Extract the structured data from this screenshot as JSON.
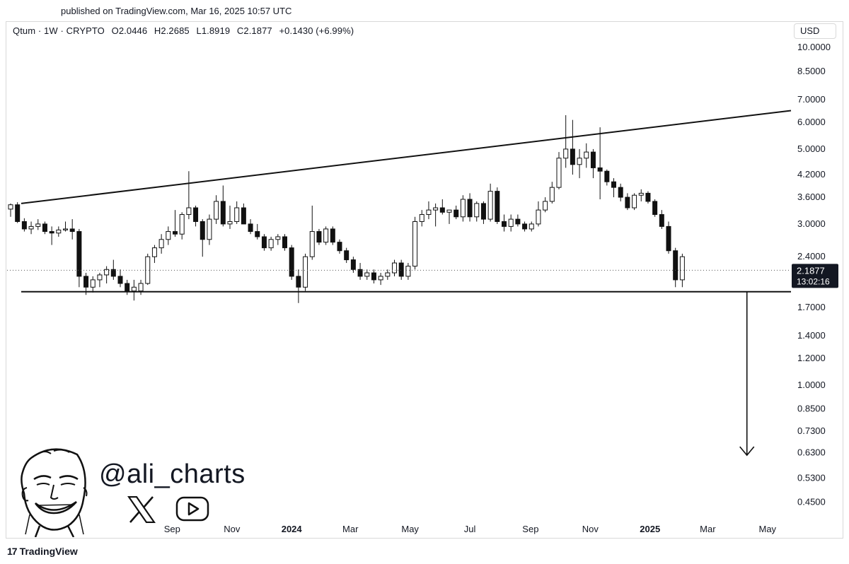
{
  "header": {
    "published": "published on TradingView.com, Mar 16, 2025 10:57 UTC"
  },
  "legend": {
    "symbol": "Qtum · 1W · CRYPTO",
    "open": "O2.0446",
    "high": "H2.2685",
    "low": "L1.8919",
    "close": "C2.1877",
    "change": "+0.1430 (+6.99%)"
  },
  "price_scale": {
    "currency": "USD",
    "last_price": "2.1877",
    "countdown": "13:02:16"
  },
  "watermark": {
    "handle": "@ali_charts",
    "icons": [
      "cartoon-face-icon",
      "x-logo-icon",
      "youtube-play-icon"
    ]
  },
  "footer": {
    "brand": "TradingView"
  },
  "chart_data": {
    "type": "candlestick",
    "y_scale": "log",
    "ylim": [
      0.4,
      10.6
    ],
    "y_ticks": [
      "10.0000",
      "8.5000",
      "7.0000",
      "6.0000",
      "5.0000",
      "4.2000",
      "3.6000",
      "3.0000",
      "2.4000",
      "1.7000",
      "1.4000",
      "1.2000",
      "1.0000",
      "0.8500",
      "0.7300",
      "0.6300",
      "0.5300",
      "0.4500"
    ],
    "x_ticks": [
      "Sep",
      "Nov",
      "2024",
      "Mar",
      "May",
      "Jul",
      "Sep",
      "Nov",
      "2025",
      "Mar",
      "May"
    ],
    "x_tick_bold": [
      "2024",
      "2025"
    ],
    "x_range": [
      "2023-03-20",
      "2025-05-25"
    ],
    "candles": [
      [
        "2023-03-20",
        3.32,
        3.45,
        3.15,
        3.42
      ],
      [
        "2023-03-27",
        3.42,
        3.48,
        3.02,
        3.05
      ],
      [
        "2023-04-03",
        3.05,
        3.12,
        2.85,
        2.9
      ],
      [
        "2023-04-10",
        2.9,
        3.05,
        2.8,
        2.95
      ],
      [
        "2023-04-17",
        2.95,
        3.1,
        2.88,
        3.0
      ],
      [
        "2023-04-24",
        3.0,
        3.05,
        2.8,
        2.85
      ],
      [
        "2023-05-01",
        2.85,
        2.95,
        2.6,
        2.82
      ],
      [
        "2023-05-08",
        2.82,
        2.95,
        2.75,
        2.88
      ],
      [
        "2023-05-15",
        2.88,
        3.05,
        2.85,
        2.9
      ],
      [
        "2023-05-22",
        2.9,
        3.1,
        2.7,
        2.85
      ],
      [
        "2023-05-29",
        2.85,
        2.9,
        1.95,
        2.1
      ],
      [
        "2023-06-05",
        2.1,
        2.15,
        1.85,
        1.95
      ],
      [
        "2023-06-12",
        1.95,
        2.1,
        1.88,
        2.05
      ],
      [
        "2023-06-19",
        2.05,
        2.15,
        1.95,
        2.12
      ],
      [
        "2023-06-26",
        2.12,
        2.25,
        2.0,
        2.2
      ],
      [
        "2023-07-03",
        2.2,
        2.35,
        2.05,
        2.1
      ],
      [
        "2023-07-10",
        2.1,
        2.2,
        1.95,
        2.0
      ],
      [
        "2023-07-17",
        2.0,
        2.05,
        1.85,
        1.9
      ],
      [
        "2023-07-24",
        1.9,
        2.05,
        1.78,
        1.95
      ],
      [
        "2023-07-31",
        1.9,
        2.05,
        1.85,
        2.0
      ],
      [
        "2023-08-07",
        2.0,
        2.45,
        1.98,
        2.4
      ],
      [
        "2023-08-14",
        2.4,
        2.6,
        2.3,
        2.55
      ],
      [
        "2023-08-21",
        2.55,
        2.8,
        2.45,
        2.7
      ],
      [
        "2023-08-28",
        2.7,
        2.95,
        2.6,
        2.85
      ],
      [
        "2023-09-04",
        2.85,
        3.3,
        2.75,
        2.8
      ],
      [
        "2023-09-11",
        2.8,
        3.25,
        2.7,
        3.2
      ],
      [
        "2023-09-18",
        3.2,
        4.3,
        3.1,
        3.35
      ],
      [
        "2023-09-25",
        3.35,
        3.4,
        2.95,
        3.05
      ],
      [
        "2023-10-02",
        3.05,
        3.1,
        2.4,
        2.7
      ],
      [
        "2023-10-09",
        2.7,
        3.2,
        2.6,
        3.1
      ],
      [
        "2023-10-16",
        3.1,
        3.65,
        3.0,
        3.5
      ],
      [
        "2023-10-23",
        3.5,
        3.9,
        2.95,
        3.0
      ],
      [
        "2023-10-30",
        3.0,
        3.4,
        2.9,
        3.05
      ],
      [
        "2023-11-06",
        3.05,
        3.5,
        3.0,
        3.35
      ],
      [
        "2023-11-13",
        3.35,
        3.45,
        3.0,
        3.0
      ],
      [
        "2023-11-20",
        3.0,
        3.1,
        2.8,
        2.85
      ],
      [
        "2023-11-27",
        2.85,
        3.0,
        2.7,
        2.75
      ],
      [
        "2023-12-04",
        2.75,
        2.8,
        2.5,
        2.55
      ],
      [
        "2023-12-11",
        2.55,
        2.75,
        2.5,
        2.7
      ],
      [
        "2023-12-18",
        2.7,
        2.8,
        2.6,
        2.75
      ],
      [
        "2023-12-25",
        2.75,
        2.8,
        2.5,
        2.55
      ],
      [
        "2024-01-01",
        2.55,
        2.6,
        2.05,
        2.1
      ],
      [
        "2024-01-08",
        2.1,
        2.2,
        1.75,
        1.95
      ],
      [
        "2024-01-15",
        1.95,
        2.45,
        1.9,
        2.4
      ],
      [
        "2024-01-22",
        2.4,
        3.4,
        2.35,
        2.85
      ],
      [
        "2024-01-29",
        2.85,
        2.9,
        2.6,
        2.65
      ],
      [
        "2024-02-05",
        2.65,
        2.95,
        2.6,
        2.9
      ],
      [
        "2024-02-12",
        2.9,
        2.95,
        2.6,
        2.65
      ],
      [
        "2024-02-19",
        2.65,
        2.7,
        2.45,
        2.5
      ],
      [
        "2024-02-26",
        2.5,
        2.55,
        2.3,
        2.35
      ],
      [
        "2024-03-04",
        2.35,
        2.4,
        2.15,
        2.2
      ],
      [
        "2024-03-11",
        2.2,
        2.3,
        2.05,
        2.1
      ],
      [
        "2024-03-18",
        2.1,
        2.2,
        2.05,
        2.15
      ],
      [
        "2024-03-25",
        2.15,
        2.2,
        2.0,
        2.05
      ],
      [
        "2024-04-01",
        2.05,
        2.15,
        1.98,
        2.1
      ],
      [
        "2024-04-08",
        2.1,
        2.2,
        2.05,
        2.15
      ],
      [
        "2024-04-15",
        2.15,
        2.35,
        2.1,
        2.3
      ],
      [
        "2024-04-22",
        2.3,
        2.35,
        2.05,
        2.1
      ],
      [
        "2024-04-29",
        2.1,
        2.3,
        2.05,
        2.25
      ],
      [
        "2024-05-06",
        2.25,
        3.15,
        2.2,
        3.05
      ],
      [
        "2024-05-13",
        3.05,
        3.3,
        2.95,
        3.2
      ],
      [
        "2024-05-20",
        3.2,
        3.5,
        3.1,
        3.3
      ],
      [
        "2024-05-27",
        3.3,
        3.45,
        2.95,
        3.35
      ],
      [
        "2024-06-03",
        3.35,
        3.55,
        3.2,
        3.25
      ],
      [
        "2024-06-10",
        3.25,
        3.3,
        3.0,
        3.3
      ],
      [
        "2024-06-17",
        3.3,
        3.4,
        3.1,
        3.15
      ],
      [
        "2024-06-24",
        3.15,
        3.65,
        3.05,
        3.55
      ],
      [
        "2024-07-01",
        3.55,
        3.7,
        3.05,
        3.15
      ],
      [
        "2024-07-08",
        3.15,
        3.5,
        3.05,
        3.45
      ],
      [
        "2024-07-15",
        3.45,
        3.5,
        3.0,
        3.1
      ],
      [
        "2024-07-22",
        3.1,
        3.95,
        3.05,
        3.75
      ],
      [
        "2024-07-29",
        3.75,
        3.85,
        3.0,
        3.05
      ],
      [
        "2024-08-05",
        3.05,
        3.2,
        2.85,
        2.95
      ],
      [
        "2024-08-12",
        2.95,
        3.2,
        2.85,
        3.1
      ],
      [
        "2024-08-19",
        3.1,
        3.2,
        2.95,
        3.0
      ],
      [
        "2024-08-26",
        3.0,
        3.05,
        2.85,
        2.9
      ],
      [
        "2024-09-02",
        2.9,
        3.05,
        2.85,
        3.0
      ],
      [
        "2024-09-09",
        3.0,
        3.5,
        2.95,
        3.3
      ],
      [
        "2024-09-16",
        3.3,
        3.6,
        3.25,
        3.5
      ],
      [
        "2024-09-23",
        3.5,
        4.0,
        3.45,
        3.85
      ],
      [
        "2024-09-30",
        3.85,
        4.9,
        3.8,
        4.7
      ],
      [
        "2024-10-07",
        4.7,
        6.3,
        4.4,
        5.0
      ],
      [
        "2024-10-14",
        5.0,
        6.1,
        4.2,
        4.5
      ],
      [
        "2024-10-21",
        4.5,
        5.0,
        4.1,
        4.7
      ],
      [
        "2024-10-28",
        4.7,
        5.2,
        4.4,
        4.9
      ],
      [
        "2024-11-04",
        4.9,
        5.0,
        4.1,
        4.4
      ],
      [
        "2024-11-11",
        4.4,
        5.8,
        3.55,
        4.3
      ],
      [
        "2024-11-18",
        4.3,
        4.35,
        3.9,
        4.0
      ],
      [
        "2024-11-25",
        4.0,
        4.1,
        3.6,
        3.85
      ],
      [
        "2024-12-02",
        3.85,
        3.95,
        3.5,
        3.6
      ],
      [
        "2024-12-09",
        3.6,
        3.7,
        3.3,
        3.35
      ],
      [
        "2024-12-16",
        3.35,
        3.7,
        3.3,
        3.65
      ],
      [
        "2024-12-23",
        3.65,
        3.8,
        3.5,
        3.7
      ],
      [
        "2024-12-30",
        3.7,
        3.75,
        3.45,
        3.5
      ],
      [
        "2025-01-06",
        3.5,
        3.55,
        3.15,
        3.2
      ],
      [
        "2025-01-13",
        3.2,
        3.3,
        2.9,
        2.95
      ],
      [
        "2025-01-20",
        2.95,
        3.05,
        2.45,
        2.5
      ],
      [
        "2025-01-27",
        2.5,
        2.55,
        1.95,
        2.05
      ],
      [
        "2025-02-03",
        2.05,
        2.45,
        1.95,
        2.4
      ]
    ],
    "trendlines": [
      {
        "name": "upper",
        "from": [
          "2023-03-20",
          3.45
        ],
        "to": [
          "2025-05-25",
          6.5
        ]
      },
      {
        "name": "support",
        "from": [
          "2023-03-20",
          1.89
        ],
        "to": [
          "2025-05-25",
          1.89
        ]
      }
    ],
    "target_arrow": {
      "date": "2025-04-10",
      "from": 1.89,
      "to": 0.62
    }
  }
}
